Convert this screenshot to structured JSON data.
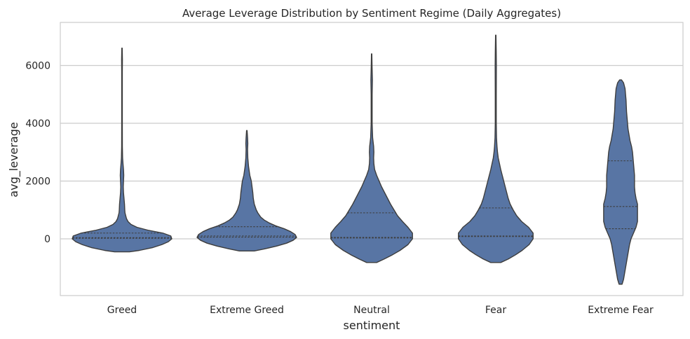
{
  "chart_data": {
    "type": "violin",
    "title": "Average Leverage Distribution by Sentiment Regime (Daily Aggregates)",
    "xlabel": "sentiment",
    "ylabel": "avg_leverage",
    "categories": [
      "Greed",
      "Extreme Greed",
      "Neutral",
      "Fear",
      "Extreme Fear"
    ],
    "ylim": [
      -2000,
      7500
    ],
    "yticks": [
      0,
      2000,
      4000,
      6000
    ],
    "grid": true,
    "color": "#5875a4",
    "edge_color": "#3d3d3d",
    "series": [
      {
        "name": "Greed",
        "profile": [
          [
            -450,
            0.15
          ],
          [
            -400,
            0.35
          ],
          [
            -300,
            0.62
          ],
          [
            -200,
            0.8
          ],
          [
            -100,
            0.93
          ],
          [
            0,
            1.0
          ],
          [
            100,
            0.98
          ],
          [
            200,
            0.82
          ],
          [
            300,
            0.52
          ],
          [
            400,
            0.3
          ],
          [
            500,
            0.18
          ],
          [
            600,
            0.12
          ],
          [
            700,
            0.09
          ],
          [
            800,
            0.075
          ],
          [
            900,
            0.06
          ],
          [
            1000,
            0.055
          ],
          [
            1200,
            0.05
          ],
          [
            1400,
            0.04
          ],
          [
            1600,
            0.03
          ],
          [
            1800,
            0.025
          ],
          [
            2000,
            0.03
          ],
          [
            2200,
            0.035
          ],
          [
            2400,
            0.03
          ],
          [
            2600,
            0.02
          ],
          [
            2800,
            0.012
          ],
          [
            3200,
            0.007
          ],
          [
            4000,
            0.006
          ],
          [
            5000,
            0.006
          ],
          [
            5800,
            0.006
          ],
          [
            6200,
            0.008
          ],
          [
            6600,
            0.004
          ]
        ],
        "quartiles": [
          20,
          40,
          200
        ]
      },
      {
        "name": "Extreme Greed",
        "profile": [
          [
            -420,
            0.15
          ],
          [
            -350,
            0.35
          ],
          [
            -250,
            0.6
          ],
          [
            -150,
            0.8
          ],
          [
            -50,
            0.93
          ],
          [
            50,
            1.0
          ],
          [
            150,
            0.97
          ],
          [
            250,
            0.88
          ],
          [
            350,
            0.75
          ],
          [
            450,
            0.58
          ],
          [
            550,
            0.45
          ],
          [
            650,
            0.35
          ],
          [
            750,
            0.28
          ],
          [
            900,
            0.22
          ],
          [
            1000,
            0.19
          ],
          [
            1200,
            0.15
          ],
          [
            1400,
            0.13
          ],
          [
            1600,
            0.12
          ],
          [
            1800,
            0.105
          ],
          [
            2000,
            0.09
          ],
          [
            2200,
            0.06
          ],
          [
            2500,
            0.035
          ],
          [
            2800,
            0.02
          ],
          [
            3100,
            0.015
          ],
          [
            3300,
            0.02
          ],
          [
            3500,
            0.015
          ],
          [
            3750,
            0.005
          ]
        ],
        "quartiles": [
          60,
          100,
          420
        ]
      },
      {
        "name": "Neutral",
        "profile": [
          [
            -820,
            0.1
          ],
          [
            -700,
            0.25
          ],
          [
            -550,
            0.42
          ],
          [
            -400,
            0.57
          ],
          [
            -200,
            0.73
          ],
          [
            0,
            0.82
          ],
          [
            200,
            0.82
          ],
          [
            400,
            0.73
          ],
          [
            600,
            0.62
          ],
          [
            800,
            0.52
          ],
          [
            1000,
            0.45
          ],
          [
            1200,
            0.38
          ],
          [
            1400,
            0.32
          ],
          [
            1600,
            0.26
          ],
          [
            1800,
            0.2
          ],
          [
            2000,
            0.15
          ],
          [
            2200,
            0.1
          ],
          [
            2400,
            0.06
          ],
          [
            2600,
            0.045
          ],
          [
            2800,
            0.04
          ],
          [
            3000,
            0.045
          ],
          [
            3200,
            0.04
          ],
          [
            3500,
            0.02
          ],
          [
            4000,
            0.01
          ],
          [
            5000,
            0.01
          ],
          [
            5500,
            0.015
          ],
          [
            6000,
            0.008
          ],
          [
            6400,
            0.004
          ]
        ],
        "quartiles": [
          30,
          50,
          900
        ]
      },
      {
        "name": "Fear",
        "profile": [
          [
            -820,
            0.1
          ],
          [
            -700,
            0.25
          ],
          [
            -550,
            0.4
          ],
          [
            -400,
            0.53
          ],
          [
            -200,
            0.67
          ],
          [
            0,
            0.75
          ],
          [
            200,
            0.75
          ],
          [
            400,
            0.66
          ],
          [
            600,
            0.52
          ],
          [
            800,
            0.42
          ],
          [
            1000,
            0.35
          ],
          [
            1200,
            0.29
          ],
          [
            1400,
            0.25
          ],
          [
            1600,
            0.22
          ],
          [
            1800,
            0.19
          ],
          [
            2000,
            0.16
          ],
          [
            2200,
            0.13
          ],
          [
            2400,
            0.1
          ],
          [
            2600,
            0.075
          ],
          [
            2800,
            0.05
          ],
          [
            3000,
            0.035
          ],
          [
            3200,
            0.025
          ],
          [
            3500,
            0.015
          ],
          [
            4000,
            0.01
          ],
          [
            5000,
            0.01
          ],
          [
            6000,
            0.012
          ],
          [
            6500,
            0.009
          ],
          [
            7050,
            0.004
          ]
        ],
        "quartiles": [
          80,
          100,
          1070
        ]
      },
      {
        "name": "Extreme Fear",
        "profile": [
          [
            -1570,
            0.03
          ],
          [
            -1400,
            0.06
          ],
          [
            -1200,
            0.08
          ],
          [
            -1000,
            0.1
          ],
          [
            -800,
            0.12
          ],
          [
            -600,
            0.14
          ],
          [
            -400,
            0.16
          ],
          [
            -200,
            0.18
          ],
          [
            0,
            0.21
          ],
          [
            200,
            0.26
          ],
          [
            400,
            0.31
          ],
          [
            600,
            0.34
          ],
          [
            800,
            0.34
          ],
          [
            1000,
            0.34
          ],
          [
            1200,
            0.34
          ],
          [
            1400,
            0.31
          ],
          [
            1600,
            0.29
          ],
          [
            1800,
            0.28
          ],
          [
            2000,
            0.28
          ],
          [
            2200,
            0.28
          ],
          [
            2400,
            0.27
          ],
          [
            2600,
            0.26
          ],
          [
            2800,
            0.25
          ],
          [
            3000,
            0.24
          ],
          [
            3200,
            0.22
          ],
          [
            3400,
            0.19
          ],
          [
            3600,
            0.17
          ],
          [
            3800,
            0.15
          ],
          [
            4000,
            0.14
          ],
          [
            4200,
            0.13
          ],
          [
            4400,
            0.12
          ],
          [
            4600,
            0.115
          ],
          [
            4800,
            0.11
          ],
          [
            5000,
            0.1
          ],
          [
            5200,
            0.09
          ],
          [
            5400,
            0.06
          ],
          [
            5500,
            0.02
          ]
        ],
        "quartiles": [
          350,
          1120,
          2700
        ]
      }
    ]
  }
}
